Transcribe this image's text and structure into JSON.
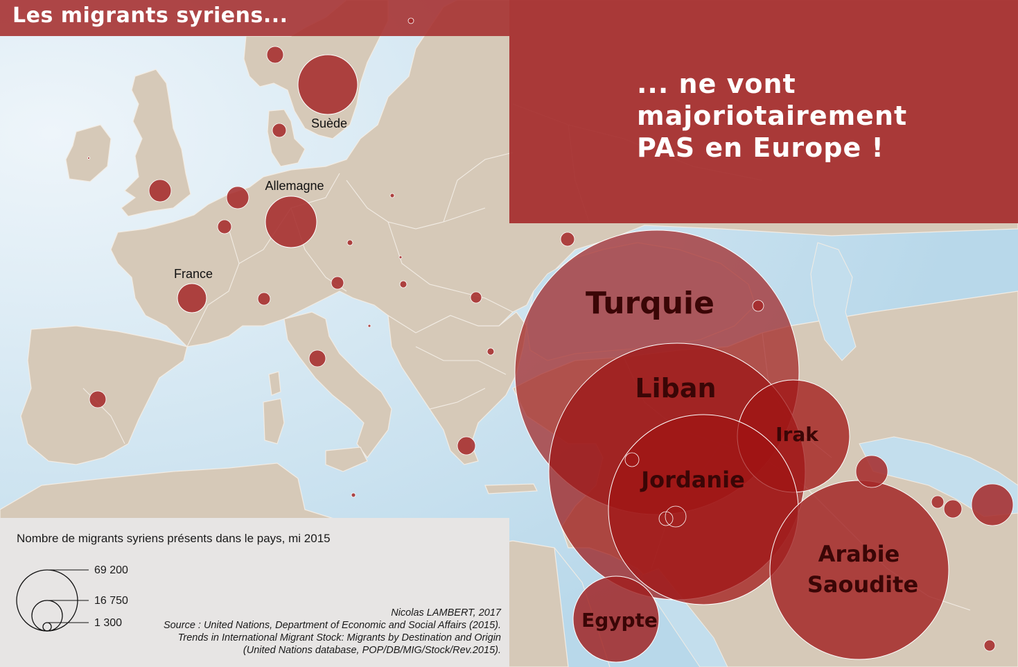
{
  "title": "Les migrants syriens...",
  "headline": [
    "... ne vont",
    "majoriotairement",
    "PAS en Europe !"
  ],
  "colors": {
    "sea": "#c3deed",
    "land": "#d6c9b8",
    "border": "#f2ece4",
    "bubble": "#a01e1e",
    "banner": "#a52d2d",
    "legend_bg": "#e7e5e4"
  },
  "countries": [
    {
      "id": "turquie",
      "label": "Turquie",
      "value": 69200
    },
    {
      "id": "liban",
      "label": "Liban",
      "value": 49000
    },
    {
      "id": "jordanie",
      "label": "Jordanie",
      "value": 34000
    },
    {
      "id": "arabie-saoudite",
      "label": "Arabie\nSaoudite",
      "value": 31000
    },
    {
      "id": "irak",
      "label": "Irak",
      "value": 12000
    },
    {
      "id": "egypte",
      "label": "Egypte",
      "value": 7400
    },
    {
      "id": "suede",
      "label": "Suède",
      "value": 3500
    },
    {
      "id": "allemagne",
      "label": "Allemagne",
      "value": 2700
    },
    {
      "id": "france",
      "label": "France",
      "value": 850
    }
  ],
  "legend": {
    "title": "Nombre de migrants syriens présents dans le pays, mi 2015",
    "values": [
      "69 200",
      "16 750",
      "1 300"
    ]
  },
  "credits": [
    "Nicolas LAMBERT, 2017",
    "Source : United Nations, Department of Economic and Social Affairs (2015).",
    "Trends in International Migrant Stock: Migrants by Destination and Origin",
    "(United Nations database, POP/DB/MIG/Stock/Rev.2015)."
  ]
}
